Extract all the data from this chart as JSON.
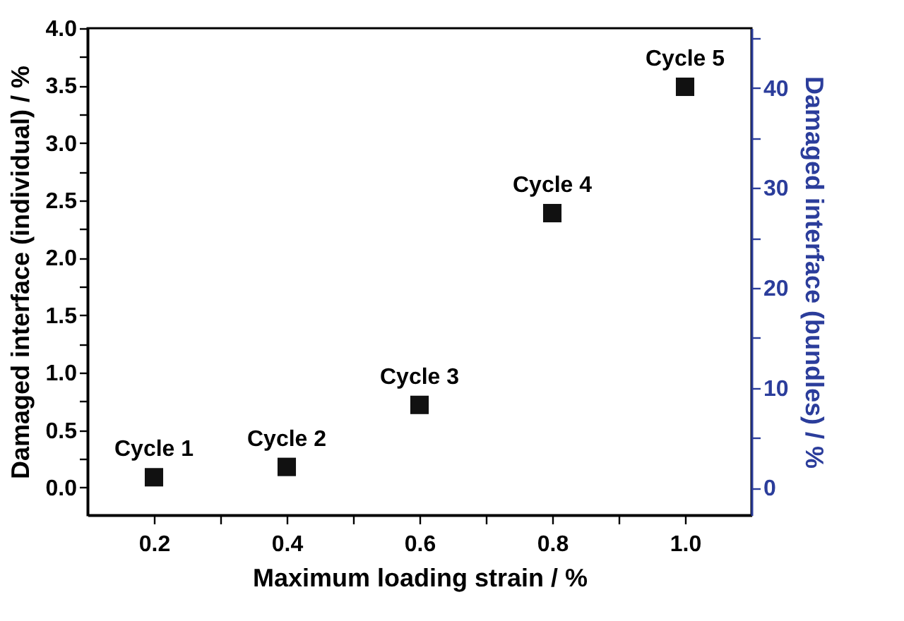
{
  "chart_data": {
    "type": "scatter",
    "xlabel": "Maximum loading strain / %",
    "ylabel": "Damaged interface (individual) / %",
    "y2label": "Damaged interface (bundles) / %",
    "x": [
      0.2,
      0.4,
      0.6,
      0.8,
      1.0
    ],
    "series": [
      {
        "color": "#111111",
        "values": [
          0.09,
          0.18,
          0.72,
          2.39,
          3.49
        ]
      }
    ],
    "marker": "square",
    "grid": false,
    "xlim": [
      0.1,
      1.1
    ],
    "xticks": [
      0.2,
      {
        "value": 0.3,
        "label": null
      },
      0.4,
      {
        "value": 0.5,
        "label": null
      },
      0.6,
      {
        "value": 0.7,
        "label": null
      },
      0.8,
      {
        "value": 0.9,
        "label": null
      },
      {
        "value": 1,
        "label": "1.0"
      }
    ],
    "ylim": [
      -0.24,
      4.0
    ],
    "yticks": [
      {
        "value": 0,
        "label": "0.0"
      },
      {
        "value": 0.25,
        "label": null
      },
      0.5,
      {
        "value": 0.75,
        "label": null
      },
      {
        "value": 1,
        "label": "1.0"
      },
      {
        "value": 1.25,
        "label": null
      },
      1.5,
      {
        "value": 1.75,
        "label": null
      },
      {
        "value": 2,
        "label": "2.0"
      },
      {
        "value": 2.25,
        "label": null
      },
      2.5,
      {
        "value": 2.75,
        "label": null
      },
      {
        "value": 3,
        "label": "3.0"
      },
      {
        "value": 3.25,
        "label": null
      },
      3.5,
      {
        "value": 3.75,
        "label": null
      },
      {
        "value": 4,
        "label": "4.0"
      }
    ],
    "y2lim": [
      -2.75,
      46
    ],
    "y2ticks": [
      0,
      {
        "value": 5,
        "label": null
      },
      10,
      {
        "value": 15,
        "label": null
      },
      20,
      {
        "value": 25,
        "label": null
      },
      30,
      {
        "value": 35,
        "label": null
      },
      40,
      {
        "value": 45,
        "label": null
      }
    ],
    "annotations": [
      {
        "text": "Cycle 1",
        "x": 0.2,
        "y": 0.09
      },
      {
        "text": "Cycle 2",
        "x": 0.4,
        "y": 0.18
      },
      {
        "text": "Cycle 3",
        "x": 0.6,
        "y": 0.72
      },
      {
        "text": "Cycle 4",
        "x": 0.8,
        "y": 2.39
      },
      {
        "text": "Cycle 5",
        "x": 1.0,
        "y": 3.49
      }
    ]
  }
}
